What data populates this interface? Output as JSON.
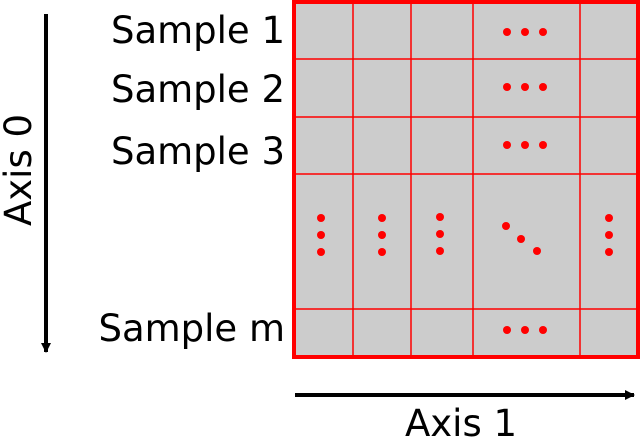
{
  "axis_0_label": "Axis 0",
  "axis_1_label": "Axis 1",
  "rows": [
    {
      "label": "Sample 1"
    },
    {
      "label": "Sample 2"
    },
    {
      "label": "Sample 3"
    },
    {
      "label": ""
    },
    {
      "label": "Sample m"
    }
  ],
  "colors": {
    "cell_fill": "#cccccc",
    "grid_line": "#ff0000",
    "dots": "#ff0000",
    "arrow": "#000000",
    "text": "#000000"
  }
}
